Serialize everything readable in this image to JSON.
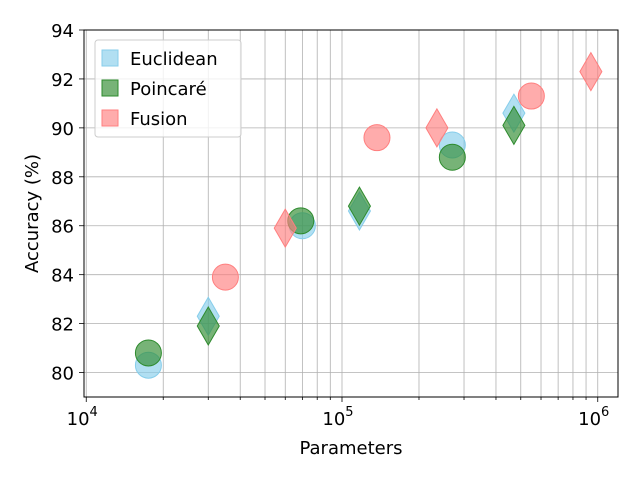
{
  "chart_data": {
    "type": "scatter",
    "xlabel": "Parameters",
    "ylabel": "Accuracy (%)",
    "xscale": "log",
    "xlim": [
      9800,
      1200000
    ],
    "ylim": [
      79.0,
      94.0
    ],
    "xticks": [
      {
        "value": 10000,
        "base": "10",
        "exp": "4"
      },
      {
        "value": 100000,
        "base": "10",
        "exp": "5"
      },
      {
        "value": 1000000,
        "base": "10",
        "exp": "6"
      }
    ],
    "yticks": [
      80,
      82,
      84,
      86,
      88,
      90,
      92,
      94
    ],
    "grid": true,
    "legend_position": "top-left",
    "series": [
      {
        "name": "Euclidean",
        "color": "#87CEEB",
        "points": [
          {
            "x": 17500,
            "y": 80.3,
            "marker": "circle"
          },
          {
            "x": 30000,
            "y": 82.3,
            "marker": "diamond"
          },
          {
            "x": 70000,
            "y": 86.0,
            "marker": "circle"
          },
          {
            "x": 117000,
            "y": 86.6,
            "marker": "diamond"
          },
          {
            "x": 270000,
            "y": 89.3,
            "marker": "circle"
          },
          {
            "x": 470000,
            "y": 90.6,
            "marker": "diamond"
          }
        ]
      },
      {
        "name": "Poincaré",
        "color": "#2E8B2E",
        "points": [
          {
            "x": 17500,
            "y": 80.8,
            "marker": "circle"
          },
          {
            "x": 30000,
            "y": 81.9,
            "marker": "diamond"
          },
          {
            "x": 69000,
            "y": 86.2,
            "marker": "circle"
          },
          {
            "x": 117000,
            "y": 86.8,
            "marker": "diamond"
          },
          {
            "x": 270000,
            "y": 88.8,
            "marker": "circle"
          },
          {
            "x": 470000,
            "y": 90.1,
            "marker": "diamond"
          }
        ]
      },
      {
        "name": "Fusion",
        "color": "#FF7F7F",
        "points": [
          {
            "x": 35000,
            "y": 83.9,
            "marker": "circle"
          },
          {
            "x": 60000,
            "y": 85.9,
            "marker": "diamond"
          },
          {
            "x": 137000,
            "y": 89.6,
            "marker": "circle"
          },
          {
            "x": 235000,
            "y": 90.0,
            "marker": "diamond"
          },
          {
            "x": 550000,
            "y": 91.3,
            "marker": "circle"
          },
          {
            "x": 940000,
            "y": 92.3,
            "marker": "diamond"
          }
        ]
      }
    ]
  }
}
